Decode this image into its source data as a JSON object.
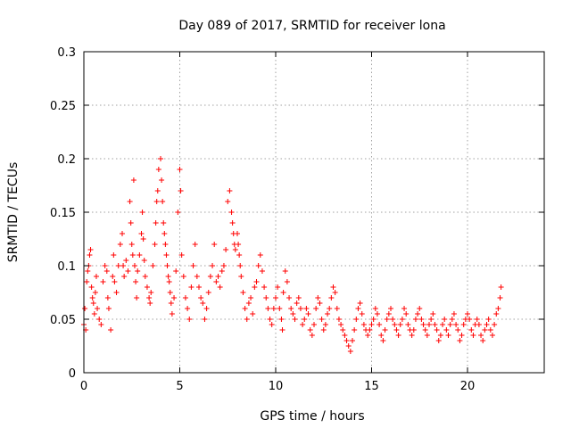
{
  "chart_data": {
    "type": "scatter",
    "title": "Day 089 of 2017, SRMTID for receiver lona",
    "xlabel": "GPS time / hours",
    "ylabel": "SRMTID / TECUs",
    "xlim": [
      0,
      24
    ],
    "ylim": [
      0,
      0.3
    ],
    "xticks": [
      0,
      5,
      10,
      15,
      20
    ],
    "xtick_labels": [
      "0",
      "5",
      "10",
      "15",
      "20"
    ],
    "yticks": [
      0,
      0.05,
      0.1,
      0.15,
      0.2,
      0.25,
      0.3
    ],
    "ytick_labels": [
      "0",
      "0.05",
      "0.1",
      "0.15",
      "0.2",
      "0.25",
      "0.3"
    ],
    "grid": true,
    "marker": "plus",
    "color": "#ff0000",
    "series": [
      {
        "name": "SRMTID",
        "points": [
          [
            0.0,
            0.045
          ],
          [
            0.05,
            0.06
          ],
          [
            0.1,
            0.04
          ],
          [
            0.15,
            0.085
          ],
          [
            0.2,
            0.095
          ],
          [
            0.25,
            0.1
          ],
          [
            0.3,
            0.11
          ],
          [
            0.35,
            0.115
          ],
          [
            0.4,
            0.08
          ],
          [
            0.45,
            0.07
          ],
          [
            0.5,
            0.065
          ],
          [
            0.55,
            0.055
          ],
          [
            0.6,
            0.075
          ],
          [
            0.65,
            0.09
          ],
          [
            0.7,
            0.06
          ],
          [
            0.8,
            0.05
          ],
          [
            0.9,
            0.045
          ],
          [
            1.0,
            0.085
          ],
          [
            1.1,
            0.1
          ],
          [
            1.2,
            0.095
          ],
          [
            1.25,
            0.07
          ],
          [
            1.3,
            0.06
          ],
          [
            1.4,
            0.04
          ],
          [
            1.5,
            0.09
          ],
          [
            1.55,
            0.11
          ],
          [
            1.6,
            0.085
          ],
          [
            1.7,
            0.075
          ],
          [
            1.8,
            0.1
          ],
          [
            1.9,
            0.12
          ],
          [
            2.0,
            0.13
          ],
          [
            2.05,
            0.1
          ],
          [
            2.1,
            0.09
          ],
          [
            2.2,
            0.105
          ],
          [
            2.3,
            0.095
          ],
          [
            2.4,
            0.16
          ],
          [
            2.45,
            0.14
          ],
          [
            2.5,
            0.12
          ],
          [
            2.55,
            0.11
          ],
          [
            2.6,
            0.18
          ],
          [
            2.65,
            0.1
          ],
          [
            2.7,
            0.085
          ],
          [
            2.75,
            0.07
          ],
          [
            2.8,
            0.095
          ],
          [
            2.9,
            0.11
          ],
          [
            3.0,
            0.13
          ],
          [
            3.05,
            0.15
          ],
          [
            3.1,
            0.125
          ],
          [
            3.15,
            0.105
          ],
          [
            3.2,
            0.09
          ],
          [
            3.3,
            0.08
          ],
          [
            3.4,
            0.07
          ],
          [
            3.45,
            0.065
          ],
          [
            3.5,
            0.075
          ],
          [
            3.6,
            0.1
          ],
          [
            3.7,
            0.12
          ],
          [
            3.75,
            0.14
          ],
          [
            3.8,
            0.16
          ],
          [
            3.85,
            0.17
          ],
          [
            3.9,
            0.19
          ],
          [
            4.0,
            0.2
          ],
          [
            4.05,
            0.18
          ],
          [
            4.1,
            0.16
          ],
          [
            4.15,
            0.14
          ],
          [
            4.2,
            0.13
          ],
          [
            4.25,
            0.12
          ],
          [
            4.3,
            0.11
          ],
          [
            4.35,
            0.1
          ],
          [
            4.4,
            0.09
          ],
          [
            4.45,
            0.085
          ],
          [
            4.5,
            0.075
          ],
          [
            4.55,
            0.065
          ],
          [
            4.6,
            0.055
          ],
          [
            4.7,
            0.07
          ],
          [
            4.8,
            0.095
          ],
          [
            4.9,
            0.15
          ],
          [
            5.0,
            0.19
          ],
          [
            5.05,
            0.17
          ],
          [
            5.1,
            0.11
          ],
          [
            5.2,
            0.09
          ],
          [
            5.3,
            0.07
          ],
          [
            5.4,
            0.06
          ],
          [
            5.5,
            0.05
          ],
          [
            5.6,
            0.08
          ],
          [
            5.7,
            0.1
          ],
          [
            5.8,
            0.12
          ],
          [
            5.9,
            0.09
          ],
          [
            6.0,
            0.08
          ],
          [
            6.1,
            0.07
          ],
          [
            6.2,
            0.065
          ],
          [
            6.3,
            0.05
          ],
          [
            6.4,
            0.06
          ],
          [
            6.5,
            0.075
          ],
          [
            6.6,
            0.09
          ],
          [
            6.7,
            0.1
          ],
          [
            6.8,
            0.12
          ],
          [
            6.9,
            0.085
          ],
          [
            7.0,
            0.09
          ],
          [
            7.1,
            0.08
          ],
          [
            7.2,
            0.095
          ],
          [
            7.3,
            0.1
          ],
          [
            7.4,
            0.115
          ],
          [
            7.5,
            0.16
          ],
          [
            7.6,
            0.17
          ],
          [
            7.7,
            0.15
          ],
          [
            7.75,
            0.14
          ],
          [
            7.8,
            0.13
          ],
          [
            7.85,
            0.12
          ],
          [
            7.9,
            0.115
          ],
          [
            8.0,
            0.13
          ],
          [
            8.05,
            0.12
          ],
          [
            8.1,
            0.11
          ],
          [
            8.15,
            0.1
          ],
          [
            8.2,
            0.09
          ],
          [
            8.3,
            0.075
          ],
          [
            8.4,
            0.06
          ],
          [
            8.5,
            0.05
          ],
          [
            8.6,
            0.065
          ],
          [
            8.7,
            0.07
          ],
          [
            8.8,
            0.055
          ],
          [
            8.9,
            0.08
          ],
          [
            9.0,
            0.085
          ],
          [
            9.1,
            0.1
          ],
          [
            9.2,
            0.11
          ],
          [
            9.3,
            0.095
          ],
          [
            9.4,
            0.08
          ],
          [
            9.5,
            0.07
          ],
          [
            9.6,
            0.06
          ],
          [
            9.7,
            0.05
          ],
          [
            9.8,
            0.045
          ],
          [
            9.9,
            0.06
          ],
          [
            10.0,
            0.07
          ],
          [
            10.1,
            0.08
          ],
          [
            10.2,
            0.06
          ],
          [
            10.3,
            0.05
          ],
          [
            10.35,
            0.04
          ],
          [
            10.4,
            0.075
          ],
          [
            10.5,
            0.095
          ],
          [
            10.6,
            0.085
          ],
          [
            10.7,
            0.07
          ],
          [
            10.8,
            0.06
          ],
          [
            10.9,
            0.055
          ],
          [
            11.0,
            0.05
          ],
          [
            11.1,
            0.065
          ],
          [
            11.2,
            0.07
          ],
          [
            11.3,
            0.06
          ],
          [
            11.4,
            0.045
          ],
          [
            11.5,
            0.05
          ],
          [
            11.6,
            0.06
          ],
          [
            11.7,
            0.055
          ],
          [
            11.8,
            0.04
          ],
          [
            11.9,
            0.035
          ],
          [
            12.0,
            0.045
          ],
          [
            12.1,
            0.06
          ],
          [
            12.2,
            0.07
          ],
          [
            12.3,
            0.065
          ],
          [
            12.4,
            0.05
          ],
          [
            12.5,
            0.04
          ],
          [
            12.6,
            0.045
          ],
          [
            12.7,
            0.055
          ],
          [
            12.8,
            0.06
          ],
          [
            12.9,
            0.07
          ],
          [
            13.0,
            0.08
          ],
          [
            13.1,
            0.075
          ],
          [
            13.2,
            0.06
          ],
          [
            13.3,
            0.05
          ],
          [
            13.4,
            0.045
          ],
          [
            13.5,
            0.04
          ],
          [
            13.6,
            0.035
          ],
          [
            13.7,
            0.03
          ],
          [
            13.8,
            0.025
          ],
          [
            13.9,
            0.02
          ],
          [
            14.0,
            0.03
          ],
          [
            14.1,
            0.04
          ],
          [
            14.2,
            0.05
          ],
          [
            14.3,
            0.06
          ],
          [
            14.4,
            0.065
          ],
          [
            14.5,
            0.055
          ],
          [
            14.6,
            0.045
          ],
          [
            14.7,
            0.04
          ],
          [
            14.8,
            0.035
          ],
          [
            14.9,
            0.04
          ],
          [
            15.0,
            0.045
          ],
          [
            15.1,
            0.05
          ],
          [
            15.2,
            0.06
          ],
          [
            15.3,
            0.055
          ],
          [
            15.4,
            0.045
          ],
          [
            15.5,
            0.035
          ],
          [
            15.6,
            0.03
          ],
          [
            15.7,
            0.04
          ],
          [
            15.8,
            0.05
          ],
          [
            15.9,
            0.055
          ],
          [
            16.0,
            0.06
          ],
          [
            16.1,
            0.05
          ],
          [
            16.2,
            0.045
          ],
          [
            16.3,
            0.04
          ],
          [
            16.4,
            0.035
          ],
          [
            16.5,
            0.045
          ],
          [
            16.6,
            0.05
          ],
          [
            16.7,
            0.06
          ],
          [
            16.8,
            0.055
          ],
          [
            16.9,
            0.045
          ],
          [
            17.0,
            0.04
          ],
          [
            17.1,
            0.035
          ],
          [
            17.2,
            0.04
          ],
          [
            17.3,
            0.05
          ],
          [
            17.4,
            0.055
          ],
          [
            17.5,
            0.06
          ],
          [
            17.6,
            0.05
          ],
          [
            17.7,
            0.045
          ],
          [
            17.8,
            0.04
          ],
          [
            17.9,
            0.035
          ],
          [
            18.0,
            0.045
          ],
          [
            18.1,
            0.05
          ],
          [
            18.2,
            0.055
          ],
          [
            18.3,
            0.045
          ],
          [
            18.4,
            0.04
          ],
          [
            18.5,
            0.03
          ],
          [
            18.6,
            0.035
          ],
          [
            18.7,
            0.045
          ],
          [
            18.8,
            0.05
          ],
          [
            18.9,
            0.04
          ],
          [
            19.0,
            0.035
          ],
          [
            19.1,
            0.045
          ],
          [
            19.2,
            0.05
          ],
          [
            19.3,
            0.055
          ],
          [
            19.4,
            0.045
          ],
          [
            19.5,
            0.04
          ],
          [
            19.6,
            0.03
          ],
          [
            19.7,
            0.035
          ],
          [
            19.8,
            0.045
          ],
          [
            19.9,
            0.05
          ],
          [
            20.0,
            0.055
          ],
          [
            20.1,
            0.05
          ],
          [
            20.2,
            0.04
          ],
          [
            20.3,
            0.035
          ],
          [
            20.4,
            0.045
          ],
          [
            20.5,
            0.05
          ],
          [
            20.6,
            0.045
          ],
          [
            20.7,
            0.035
          ],
          [
            20.8,
            0.03
          ],
          [
            20.9,
            0.04
          ],
          [
            21.0,
            0.045
          ],
          [
            21.1,
            0.05
          ],
          [
            21.2,
            0.04
          ],
          [
            21.3,
            0.035
          ],
          [
            21.4,
            0.045
          ],
          [
            21.5,
            0.055
          ],
          [
            21.6,
            0.06
          ],
          [
            21.7,
            0.07
          ],
          [
            21.75,
            0.08
          ]
        ]
      }
    ]
  }
}
